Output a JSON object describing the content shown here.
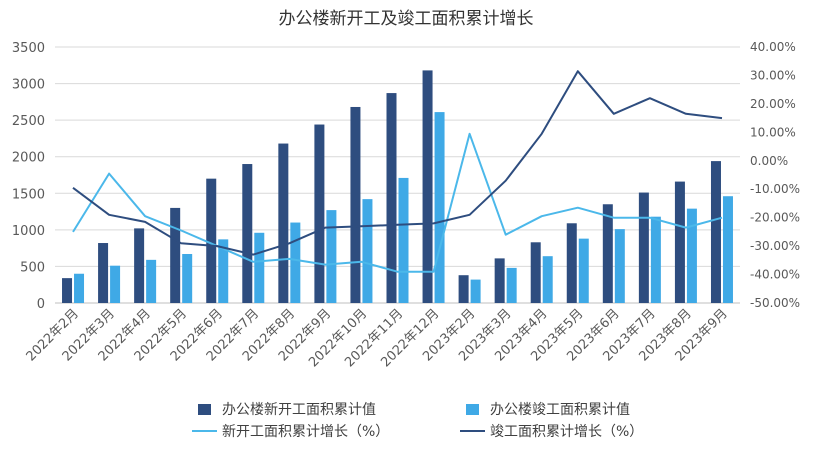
{
  "chart_data": {
    "type": "bar+line",
    "title": "办公楼新开工及竣工面积累计增长",
    "categories": [
      "2022年2月",
      "2022年3月",
      "2022年4月",
      "2022年5月",
      "2022年6月",
      "2022年7月",
      "2022年8月",
      "2022年9月",
      "2022年10月",
      "2022年11月",
      "2022年12月",
      "2023年2月",
      "2023年3月",
      "2023年4月",
      "2023年5月",
      "2023年6月",
      "2023年7月",
      "2023年8月",
      "2023年9月"
    ],
    "left_axis": {
      "ylim": [
        0,
        3500
      ],
      "ticks": [
        "0",
        "500",
        "1000",
        "1500",
        "2000",
        "2500",
        "3000",
        "3500"
      ]
    },
    "right_axis": {
      "ylim": [
        -0.5,
        0.4
      ],
      "ticks": [
        "-50.00%",
        "-40.00%",
        "-30.00%",
        "-20.00%",
        "-10.00%",
        "0.00%",
        "10.00%",
        "20.00%",
        "30.00%",
        "40.00%"
      ]
    },
    "bar_series": [
      {
        "name": "办公楼新开工面积累计值",
        "color": "#2e4d7f",
        "values": [
          340,
          820,
          1020,
          1300,
          1700,
          1900,
          2180,
          2440,
          2680,
          2870,
          3180,
          380,
          610,
          830,
          1090,
          1350,
          1510,
          1660,
          1940
        ]
      },
      {
        "name": "办公楼竣工面积累计值",
        "color": "#3fa9e6",
        "values": [
          400,
          510,
          590,
          670,
          870,
          960,
          1100,
          1270,
          1420,
          1710,
          2610,
          320,
          480,
          640,
          880,
          1010,
          1180,
          1290,
          1460
        ]
      }
    ],
    "line_series": [
      {
        "name": "新开工面积累计增长（%）",
        "color": "#4bb8ea",
        "values": [
          -0.25,
          -0.045,
          -0.195,
          -0.245,
          -0.3,
          -0.355,
          -0.345,
          -0.365,
          -0.355,
          -0.39,
          -0.39,
          0.095,
          -0.26,
          -0.195,
          -0.165,
          -0.2,
          -0.2,
          -0.235,
          -0.2
        ]
      },
      {
        "name": "竣工面积累计增长（%）",
        "color": "#2e4d7f",
        "values": [
          -0.095,
          -0.19,
          -0.215,
          -0.29,
          -0.3,
          -0.33,
          -0.29,
          -0.235,
          -0.23,
          -0.225,
          -0.22,
          -0.19,
          -0.07,
          0.095,
          0.315,
          0.165,
          0.22,
          0.165,
          0.15
        ]
      }
    ],
    "grid": true,
    "legend": "bottom"
  }
}
